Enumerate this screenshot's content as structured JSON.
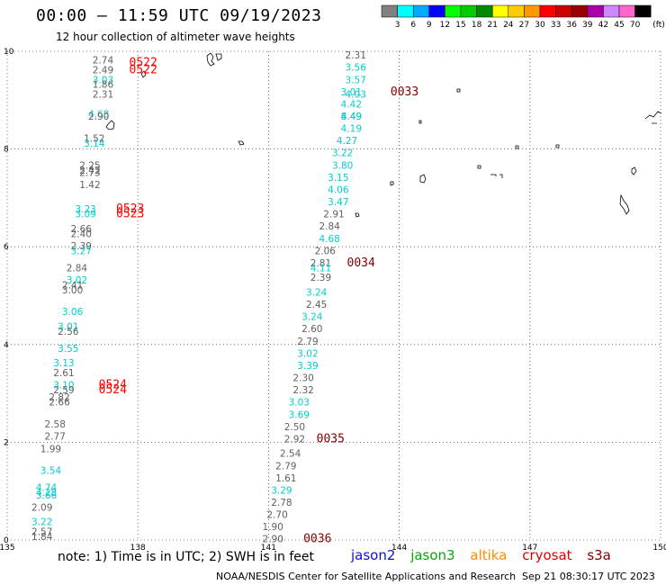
{
  "title": "00:00 – 11:59 UTC 09/19/2023",
  "subtitle": "12 hour collection of altimeter wave heights",
  "note": "note: 1) Time is in UTC; 2) SWH is in feet",
  "credit": "NOAA/NESDIS Center for Satellite Applications and Research",
  "timestamp": "Sep 21 08:30:17 UTC 2023",
  "satellites": [
    {
      "name": "jason2",
      "color": "#1010d0"
    },
    {
      "name": "jason3",
      "color": "#10a010"
    },
    {
      "name": "altika",
      "color": "#ff8c00"
    },
    {
      "name": "cryosat",
      "color": "#e00000"
    },
    {
      "name": "s3a",
      "color": "#800000"
    }
  ],
  "colorbar": {
    "unit": "(ft)",
    "labels": [
      "3",
      "6",
      "9",
      "12",
      "15",
      "18",
      "21",
      "24",
      "27",
      "30",
      "33",
      "36",
      "39",
      "42",
      "45",
      "70"
    ],
    "colors": [
      "#808080",
      "#00ffff",
      "#00aaff",
      "#0000ff",
      "#00ff00",
      "#00cc00",
      "#008800",
      "#ffff00",
      "#ffcc00",
      "#ff9900",
      "#ff0000",
      "#cc0000",
      "#990000",
      "#aa00aa",
      "#cc88ff",
      "#ff66cc",
      "#000000"
    ]
  },
  "chart_data": {
    "type": "scatter",
    "title": "00:00 – 11:59 UTC 09/19/2023",
    "xlabel": "",
    "ylabel": "",
    "xlim": [
      135,
      150
    ],
    "ylim": [
      0,
      10
    ],
    "xticks": [
      "135",
      "138",
      "141",
      "144",
      "147",
      "150"
    ],
    "yticks": [
      "0",
      "2",
      "4",
      "6",
      "8",
      "10"
    ],
    "grid": true,
    "value_colors": {
      "gray": "#606060",
      "cyan": "#00cccc"
    },
    "time_colors": {
      "cryosat": "#ff0000",
      "s3a": "#800000"
    },
    "wave_heights": [
      {
        "lon": 137.2,
        "lat": 9.75,
        "value": "2.74",
        "c": "gray"
      },
      {
        "lon": 137.2,
        "lat": 9.55,
        "value": "2.49",
        "c": "gray"
      },
      {
        "lon": 137.2,
        "lat": 9.35,
        "value": "3.03",
        "c": "cyan"
      },
      {
        "lon": 137.2,
        "lat": 9.25,
        "value": "1.86",
        "c": "gray"
      },
      {
        "lon": 137.2,
        "lat": 9.05,
        "value": "2.31",
        "c": "gray"
      },
      {
        "lon": 137.1,
        "lat": 8.65,
        "value": "4.68",
        "c": "cyan"
      },
      {
        "lon": 137.1,
        "lat": 8.6,
        "value": "2.90",
        "c": "gray"
      },
      {
        "lon": 137.0,
        "lat": 8.15,
        "value": "1.52",
        "c": "gray"
      },
      {
        "lon": 137.0,
        "lat": 8.05,
        "value": "3.14",
        "c": "cyan"
      },
      {
        "lon": 136.9,
        "lat": 7.6,
        "value": "2.25",
        "c": "gray"
      },
      {
        "lon": 136.9,
        "lat": 7.5,
        "value": "2.42",
        "c": "gray"
      },
      {
        "lon": 136.9,
        "lat": 7.45,
        "value": "2.73",
        "c": "gray"
      },
      {
        "lon": 136.9,
        "lat": 7.2,
        "value": "1.42",
        "c": "gray"
      },
      {
        "lon": 136.8,
        "lat": 6.7,
        "value": "3.23",
        "c": "cyan"
      },
      {
        "lon": 136.8,
        "lat": 6.6,
        "value": "3.09",
        "c": "cyan"
      },
      {
        "lon": 136.7,
        "lat": 6.3,
        "value": "2.66",
        "c": "gray"
      },
      {
        "lon": 136.7,
        "lat": 6.2,
        "value": "2.40",
        "c": "gray"
      },
      {
        "lon": 136.7,
        "lat": 5.95,
        "value": "2.39",
        "c": "gray"
      },
      {
        "lon": 136.7,
        "lat": 5.85,
        "value": "3.27",
        "c": "cyan"
      },
      {
        "lon": 136.6,
        "lat": 5.5,
        "value": "2.84",
        "c": "gray"
      },
      {
        "lon": 136.6,
        "lat": 5.25,
        "value": "3.02",
        "c": "cyan"
      },
      {
        "lon": 136.5,
        "lat": 5.15,
        "value": "2.41",
        "c": "gray"
      },
      {
        "lon": 136.5,
        "lat": 5.05,
        "value": "3.00",
        "c": "gray"
      },
      {
        "lon": 136.5,
        "lat": 4.6,
        "value": "3.06",
        "c": "cyan"
      },
      {
        "lon": 136.4,
        "lat": 4.3,
        "value": "3.01",
        "c": "cyan"
      },
      {
        "lon": 136.4,
        "lat": 4.2,
        "value": "2.56",
        "c": "gray"
      },
      {
        "lon": 136.4,
        "lat": 3.85,
        "value": "3.55",
        "c": "cyan"
      },
      {
        "lon": 136.3,
        "lat": 3.55,
        "value": "3.13",
        "c": "cyan"
      },
      {
        "lon": 136.3,
        "lat": 3.35,
        "value": "2.61",
        "c": "gray"
      },
      {
        "lon": 136.3,
        "lat": 3.1,
        "value": "3.10",
        "c": "cyan"
      },
      {
        "lon": 136.3,
        "lat": 3.0,
        "value": "2.59",
        "c": "gray"
      },
      {
        "lon": 136.2,
        "lat": 2.85,
        "value": "2.82",
        "c": "gray"
      },
      {
        "lon": 136.2,
        "lat": 2.75,
        "value": "2.66",
        "c": "gray"
      },
      {
        "lon": 136.1,
        "lat": 2.3,
        "value": "2.58",
        "c": "gray"
      },
      {
        "lon": 136.1,
        "lat": 2.05,
        "value": "2.77",
        "c": "gray"
      },
      {
        "lon": 136.0,
        "lat": 1.8,
        "value": "1.99",
        "c": "gray"
      },
      {
        "lon": 136.0,
        "lat": 1.35,
        "value": "3.54",
        "c": "cyan"
      },
      {
        "lon": 135.9,
        "lat": 1.0,
        "value": "4.74",
        "c": "cyan"
      },
      {
        "lon": 135.9,
        "lat": 0.9,
        "value": "4.28",
        "c": "cyan"
      },
      {
        "lon": 135.9,
        "lat": 0.85,
        "value": "3.66",
        "c": "cyan"
      },
      {
        "lon": 135.8,
        "lat": 0.6,
        "value": "2.09",
        "c": "gray"
      },
      {
        "lon": 135.8,
        "lat": 0.3,
        "value": "3.22",
        "c": "cyan"
      },
      {
        "lon": 135.8,
        "lat": 0.1,
        "value": "2.57",
        "c": "gray"
      },
      {
        "lon": 135.8,
        "lat": 0.0,
        "value": "1.84",
        "c": "gray"
      },
      {
        "lon": 143.0,
        "lat": 9.85,
        "value": "2.31",
        "c": "gray"
      },
      {
        "lon": 143.0,
        "lat": 9.6,
        "value": "3.56",
        "c": "cyan"
      },
      {
        "lon": 143.0,
        "lat": 9.35,
        "value": "3.57",
        "c": "cyan"
      },
      {
        "lon": 142.9,
        "lat": 9.1,
        "value": "3.01",
        "c": "cyan"
      },
      {
        "lon": 143.0,
        "lat": 9.05,
        "value": "4.03",
        "c": "cyan"
      },
      {
        "lon": 142.9,
        "lat": 8.85,
        "value": "4.42",
        "c": "cyan"
      },
      {
        "lon": 142.9,
        "lat": 8.6,
        "value": "4.49",
        "c": "cyan"
      },
      {
        "lon": 142.9,
        "lat": 8.6,
        "value": "8.49",
        "c": "cyan"
      },
      {
        "lon": 142.9,
        "lat": 8.35,
        "value": "4.19",
        "c": "cyan"
      },
      {
        "lon": 142.8,
        "lat": 8.1,
        "value": "4.27",
        "c": "cyan"
      },
      {
        "lon": 142.7,
        "lat": 7.85,
        "value": "3.22",
        "c": "cyan"
      },
      {
        "lon": 142.7,
        "lat": 7.6,
        "value": "3.80",
        "c": "cyan"
      },
      {
        "lon": 142.6,
        "lat": 7.35,
        "value": "3.15",
        "c": "cyan"
      },
      {
        "lon": 142.6,
        "lat": 7.1,
        "value": "4.06",
        "c": "cyan"
      },
      {
        "lon": 142.6,
        "lat": 6.85,
        "value": "3.47",
        "c": "cyan"
      },
      {
        "lon": 142.5,
        "lat": 6.6,
        "value": "2.91",
        "c": "gray"
      },
      {
        "lon": 142.4,
        "lat": 6.35,
        "value": "2.84",
        "c": "gray"
      },
      {
        "lon": 142.4,
        "lat": 6.1,
        "value": "4.68",
        "c": "cyan"
      },
      {
        "lon": 142.3,
        "lat": 5.85,
        "value": "2.06",
        "c": "gray"
      },
      {
        "lon": 142.2,
        "lat": 5.6,
        "value": "2.81",
        "c": "gray"
      },
      {
        "lon": 142.2,
        "lat": 5.5,
        "value": "4.11",
        "c": "cyan"
      },
      {
        "lon": 142.2,
        "lat": 5.3,
        "value": "2.39",
        "c": "gray"
      },
      {
        "lon": 142.1,
        "lat": 5.0,
        "value": "3.24",
        "c": "cyan"
      },
      {
        "lon": 142.1,
        "lat": 4.75,
        "value": "2.45",
        "c": "gray"
      },
      {
        "lon": 142.0,
        "lat": 4.5,
        "value": "3.24",
        "c": "cyan"
      },
      {
        "lon": 142.0,
        "lat": 4.25,
        "value": "2.60",
        "c": "gray"
      },
      {
        "lon": 141.9,
        "lat": 4.0,
        "value": "2.79",
        "c": "gray"
      },
      {
        "lon": 141.9,
        "lat": 3.75,
        "value": "3.02",
        "c": "cyan"
      },
      {
        "lon": 141.9,
        "lat": 3.5,
        "value": "3.39",
        "c": "cyan"
      },
      {
        "lon": 141.8,
        "lat": 3.25,
        "value": "2.30",
        "c": "gray"
      },
      {
        "lon": 141.8,
        "lat": 3.0,
        "value": "2.32",
        "c": "gray"
      },
      {
        "lon": 141.7,
        "lat": 2.75,
        "value": "3.03",
        "c": "cyan"
      },
      {
        "lon": 141.7,
        "lat": 2.5,
        "value": "3.69",
        "c": "cyan"
      },
      {
        "lon": 141.6,
        "lat": 2.25,
        "value": "2.50",
        "c": "gray"
      },
      {
        "lon": 141.6,
        "lat": 2.0,
        "value": "2.92",
        "c": "gray"
      },
      {
        "lon": 141.5,
        "lat": 1.7,
        "value": "2.54",
        "c": "gray"
      },
      {
        "lon": 141.4,
        "lat": 1.45,
        "value": "2.79",
        "c": "gray"
      },
      {
        "lon": 141.4,
        "lat": 1.2,
        "value": "1.61",
        "c": "gray"
      },
      {
        "lon": 141.3,
        "lat": 0.95,
        "value": "3.29",
        "c": "cyan"
      },
      {
        "lon": 141.3,
        "lat": 0.7,
        "value": "2.78",
        "c": "gray"
      },
      {
        "lon": 141.2,
        "lat": 0.45,
        "value": "2.70",
        "c": "gray"
      },
      {
        "lon": 141.1,
        "lat": 0.2,
        "value": "1.90",
        "c": "gray"
      },
      {
        "lon": 141.1,
        "lat": -0.05,
        "value": "2.90",
        "c": "gray"
      }
    ],
    "time_labels": [
      {
        "lon": 137.8,
        "lat": 9.7,
        "value": "0522",
        "sat": "cryosat"
      },
      {
        "lon": 137.8,
        "lat": 9.55,
        "value": "0522",
        "sat": "cryosat"
      },
      {
        "lon": 137.5,
        "lat": 6.7,
        "value": "0523",
        "sat": "cryosat"
      },
      {
        "lon": 137.5,
        "lat": 6.6,
        "value": "0523",
        "sat": "cryosat"
      },
      {
        "lon": 137.1,
        "lat": 3.1,
        "value": "0524",
        "sat": "cryosat"
      },
      {
        "lon": 137.1,
        "lat": 3.0,
        "value": "0524",
        "sat": "cryosat"
      },
      {
        "lon": 143.8,
        "lat": 9.1,
        "value": "0033",
        "sat": "s3a"
      },
      {
        "lon": 142.8,
        "lat": 5.6,
        "value": "0034",
        "sat": "s3a"
      },
      {
        "lon": 142.1,
        "lat": 2.0,
        "value": "0035",
        "sat": "s3a"
      },
      {
        "lon": 141.8,
        "lat": -0.05,
        "value": "0036",
        "sat": "s3a"
      }
    ]
  }
}
